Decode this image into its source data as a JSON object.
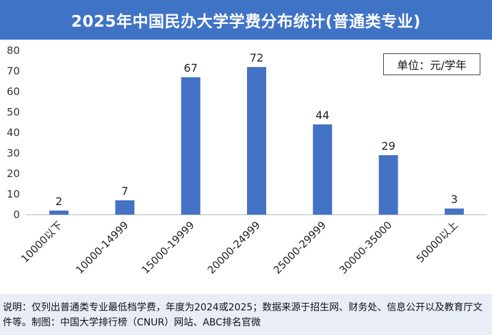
{
  "title": "2025年中国民办大学学费分布统计(普通类专业)",
  "unit_label": "单位：元/学年",
  "note": "说明：仅列出普通类专业最低档学费，年度为2024或2025；数据来源于招生网、财务处、信息公开以及教育厅文件等。制图：中国大学排行榜（CNUR）网站、ABC排名官微",
  "colors": {
    "header": "#3f73c6",
    "bar": "#4472c4",
    "footer_bg": "#e8edf6"
  },
  "chart_data": {
    "type": "bar",
    "categories": [
      "10000以下",
      "10000-14999",
      "15000-19999",
      "20000-24999",
      "25000-29999",
      "30000-35000",
      "50000以上"
    ],
    "values": [
      2,
      7,
      67,
      72,
      44,
      29,
      3
    ],
    "yticks": [
      0,
      10,
      20,
      30,
      40,
      50,
      60,
      70,
      80
    ],
    "ylim": [
      0,
      80
    ],
    "grid": false,
    "data_labels": true
  }
}
